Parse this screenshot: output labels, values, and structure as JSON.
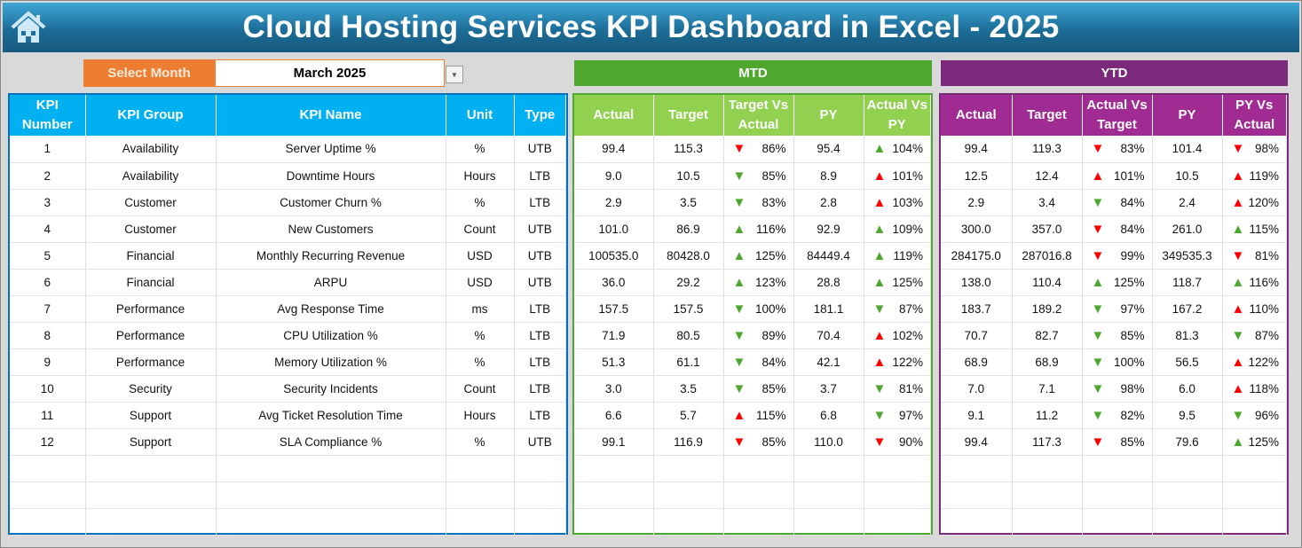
{
  "title": "Cloud Hosting Services KPI Dashboard in Excel - 2025",
  "select_month": {
    "label": "Select Month",
    "value": "March 2025"
  },
  "sections": {
    "mtd": "MTD",
    "ytd": "YTD"
  },
  "colors": {
    "kpi_header": "#00b0f0",
    "mtd": "#4ea72e",
    "mtd_header": "#92d050",
    "ytd": "#7b2a7b",
    "ytd_header": "#a02b93",
    "select": "#ed7d31",
    "good": "#4ea72e",
    "bad": "#ff0000"
  },
  "kpi_headers": [
    "KPI Number",
    "KPI Group",
    "KPI Name",
    "Unit",
    "Type"
  ],
  "mtd_headers": [
    "Actual",
    "Target",
    "Target Vs Actual",
    "PY",
    "Actual Vs PY"
  ],
  "ytd_headers": [
    "Actual",
    "Target",
    "Actual Vs Target",
    "PY",
    "PY Vs Actual"
  ],
  "kpis": [
    [
      "1",
      "Availability",
      "Server Uptime %",
      "%",
      "UTB"
    ],
    [
      "2",
      "Availability",
      "Downtime Hours",
      "Hours",
      "LTB"
    ],
    [
      "3",
      "Customer",
      "Customer Churn %",
      "%",
      "LTB"
    ],
    [
      "4",
      "Customer",
      "New Customers",
      "Count",
      "UTB"
    ],
    [
      "5",
      "Financial",
      "Monthly Recurring Revenue",
      "USD",
      "UTB"
    ],
    [
      "6",
      "Financial",
      "ARPU",
      "USD",
      "UTB"
    ],
    [
      "7",
      "Performance",
      "Avg Response Time",
      "ms",
      "LTB"
    ],
    [
      "8",
      "Performance",
      "CPU Utilization %",
      "%",
      "LTB"
    ],
    [
      "9",
      "Performance",
      "Memory Utilization %",
      "%",
      "LTB"
    ],
    [
      "10",
      "Security",
      "Security Incidents",
      "Count",
      "LTB"
    ],
    [
      "11",
      "Support",
      "Avg Ticket Resolution Time",
      "Hours",
      "LTB"
    ],
    [
      "12",
      "Support",
      "SLA Compliance %",
      "%",
      "UTB"
    ]
  ],
  "mtd": [
    [
      "99.4",
      "115.3",
      {
        "dir": "down",
        "status": "bad",
        "value": "86%"
      },
      "95.4",
      {
        "dir": "up",
        "status": "good",
        "value": "104%"
      }
    ],
    [
      "9.0",
      "10.5",
      {
        "dir": "down",
        "status": "good",
        "value": "85%"
      },
      "8.9",
      {
        "dir": "up",
        "status": "bad",
        "value": "101%"
      }
    ],
    [
      "2.9",
      "3.5",
      {
        "dir": "down",
        "status": "good",
        "value": "83%"
      },
      "2.8",
      {
        "dir": "up",
        "status": "bad",
        "value": "103%"
      }
    ],
    [
      "101.0",
      "86.9",
      {
        "dir": "up",
        "status": "good",
        "value": "116%"
      },
      "92.9",
      {
        "dir": "up",
        "status": "good",
        "value": "109%"
      }
    ],
    [
      "100535.0",
      "80428.0",
      {
        "dir": "up",
        "status": "good",
        "value": "125%"
      },
      "84449.4",
      {
        "dir": "up",
        "status": "good",
        "value": "119%"
      }
    ],
    [
      "36.0",
      "29.2",
      {
        "dir": "up",
        "status": "good",
        "value": "123%"
      },
      "28.8",
      {
        "dir": "up",
        "status": "good",
        "value": "125%"
      }
    ],
    [
      "157.5",
      "157.5",
      {
        "dir": "down",
        "status": "good",
        "value": "100%"
      },
      "181.1",
      {
        "dir": "down",
        "status": "good",
        "value": "87%"
      }
    ],
    [
      "71.9",
      "80.5",
      {
        "dir": "down",
        "status": "good",
        "value": "89%"
      },
      "70.4",
      {
        "dir": "up",
        "status": "bad",
        "value": "102%"
      }
    ],
    [
      "51.3",
      "61.1",
      {
        "dir": "down",
        "status": "good",
        "value": "84%"
      },
      "42.1",
      {
        "dir": "up",
        "status": "bad",
        "value": "122%"
      }
    ],
    [
      "3.0",
      "3.5",
      {
        "dir": "down",
        "status": "good",
        "value": "85%"
      },
      "3.7",
      {
        "dir": "down",
        "status": "good",
        "value": "81%"
      }
    ],
    [
      "6.6",
      "5.7",
      {
        "dir": "up",
        "status": "bad",
        "value": "115%"
      },
      "6.8",
      {
        "dir": "down",
        "status": "good",
        "value": "97%"
      }
    ],
    [
      "99.1",
      "116.9",
      {
        "dir": "down",
        "status": "bad",
        "value": "85%"
      },
      "110.0",
      {
        "dir": "down",
        "status": "bad",
        "value": "90%"
      }
    ]
  ],
  "ytd": [
    [
      "99.4",
      "119.3",
      {
        "dir": "down",
        "status": "bad",
        "value": "83%"
      },
      "101.4",
      {
        "dir": "down",
        "status": "bad",
        "value": "98%"
      }
    ],
    [
      "12.5",
      "12.4",
      {
        "dir": "up",
        "status": "bad",
        "value": "101%"
      },
      "10.5",
      {
        "dir": "up",
        "status": "bad",
        "value": "119%"
      }
    ],
    [
      "2.9",
      "3.4",
      {
        "dir": "down",
        "status": "good",
        "value": "84%"
      },
      "2.4",
      {
        "dir": "up",
        "status": "bad",
        "value": "120%"
      }
    ],
    [
      "300.0",
      "357.0",
      {
        "dir": "down",
        "status": "bad",
        "value": "84%"
      },
      "261.0",
      {
        "dir": "up",
        "status": "good",
        "value": "115%"
      }
    ],
    [
      "284175.0",
      "287016.8",
      {
        "dir": "down",
        "status": "bad",
        "value": "99%"
      },
      "349535.3",
      {
        "dir": "down",
        "status": "bad",
        "value": "81%"
      }
    ],
    [
      "138.0",
      "110.4",
      {
        "dir": "up",
        "status": "good",
        "value": "125%"
      },
      "118.7",
      {
        "dir": "up",
        "status": "good",
        "value": "116%"
      }
    ],
    [
      "183.7",
      "189.2",
      {
        "dir": "down",
        "status": "good",
        "value": "97%"
      },
      "167.2",
      {
        "dir": "up",
        "status": "bad",
        "value": "110%"
      }
    ],
    [
      "70.7",
      "82.7",
      {
        "dir": "down",
        "status": "good",
        "value": "85%"
      },
      "81.3",
      {
        "dir": "down",
        "status": "good",
        "value": "87%"
      }
    ],
    [
      "68.9",
      "68.9",
      {
        "dir": "down",
        "status": "good",
        "value": "100%"
      },
      "56.5",
      {
        "dir": "up",
        "status": "bad",
        "value": "122%"
      }
    ],
    [
      "7.0",
      "7.1",
      {
        "dir": "down",
        "status": "good",
        "value": "98%"
      },
      "6.0",
      {
        "dir": "up",
        "status": "bad",
        "value": "118%"
      }
    ],
    [
      "9.1",
      "11.2",
      {
        "dir": "down",
        "status": "good",
        "value": "82%"
      },
      "9.5",
      {
        "dir": "down",
        "status": "good",
        "value": "96%"
      }
    ],
    [
      "99.4",
      "117.3",
      {
        "dir": "down",
        "status": "bad",
        "value": "85%"
      },
      "79.6",
      {
        "dir": "up",
        "status": "good",
        "value": "125%"
      }
    ]
  ]
}
